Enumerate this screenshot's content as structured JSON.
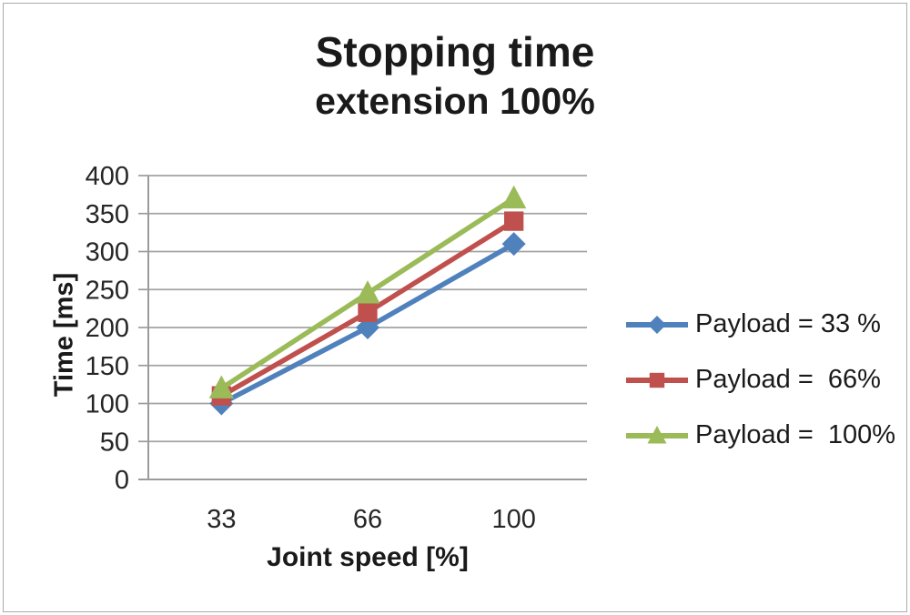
{
  "chart_data": {
    "type": "line",
    "title": "Stopping time extension 100%",
    "title_lines": [
      "Stopping time",
      "extension 100%"
    ],
    "xlabel": "Joint speed [%]",
    "ylabel": "Time [ms]",
    "categories": [
      33,
      66,
      100
    ],
    "x_tick_labels": [
      "33",
      "66",
      "100"
    ],
    "series": [
      {
        "name": "Payload = 33 %",
        "values": [
          100,
          200,
          310
        ],
        "color": "#4F81BD",
        "marker": "diamond"
      },
      {
        "name": "Payload =  66%",
        "values": [
          110,
          220,
          340
        ],
        "color": "#C0504D",
        "marker": "square"
      },
      {
        "name": "Payload =  100%",
        "values": [
          120,
          245,
          370
        ],
        "color": "#9BBB59",
        "marker": "triangle"
      }
    ],
    "ylim": [
      0,
      400
    ],
    "ytick_step": 50,
    "y_tick_labels": [
      "0",
      "50",
      "100",
      "150",
      "200",
      "250",
      "300",
      "350",
      "400"
    ],
    "grid": true,
    "legend_position": "right",
    "grid_color": "#a3a3a3",
    "axis_color": "#9b9b9b",
    "text_color": "#262626"
  }
}
